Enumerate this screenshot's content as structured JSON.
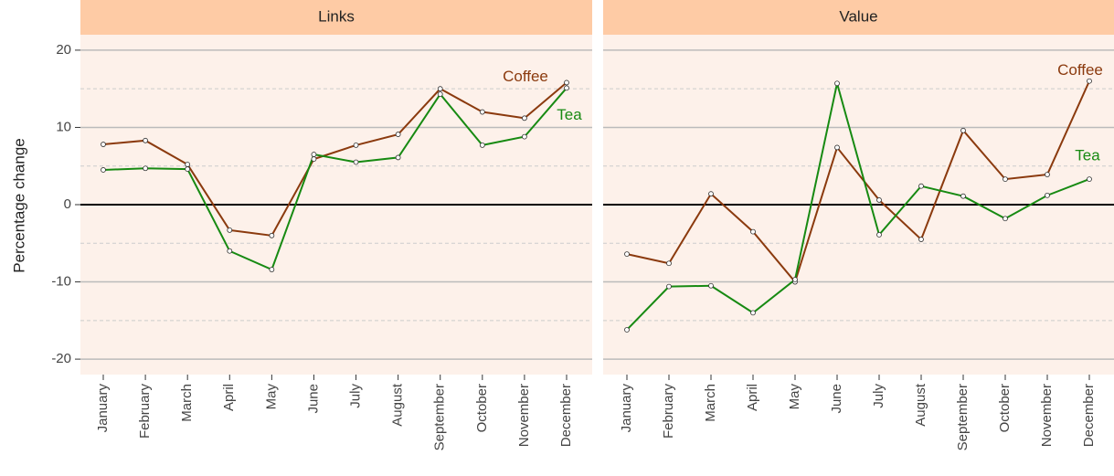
{
  "chart_data": [
    {
      "type": "line",
      "title": "Links",
      "ylabel": "Percentage change",
      "categories": [
        "January",
        "February",
        "March",
        "April",
        "May",
        "June",
        "July",
        "August",
        "September",
        "October",
        "November",
        "December"
      ],
      "series": [
        {
          "name": "Coffee",
          "color": "#8b3a0e",
          "values": [
            7.8,
            8.3,
            5.2,
            -3.3,
            -4.0,
            5.9,
            7.7,
            9.1,
            15.0,
            12.0,
            11.2,
            15.8
          ]
        },
        {
          "name": "Tea",
          "color": "#178a12",
          "values": [
            4.5,
            4.7,
            4.6,
            -6.0,
            -8.4,
            6.5,
            5.5,
            6.1,
            14.3,
            7.7,
            8.8,
            15.1
          ]
        }
      ],
      "ylim": [
        -22,
        22
      ],
      "yticks": [
        -20,
        -10,
        0,
        10,
        20
      ],
      "minor_yticks": [
        -15,
        -5,
        5,
        15
      ],
      "grid": true
    },
    {
      "type": "line",
      "title": "Value",
      "categories": [
        "January",
        "February",
        "March",
        "April",
        "May",
        "June",
        "July",
        "August",
        "September",
        "October",
        "November",
        "December"
      ],
      "series": [
        {
          "name": "Coffee",
          "color": "#8b3a0e",
          "values": [
            -6.4,
            -7.6,
            1.4,
            -3.5,
            -10.0,
            7.4,
            0.6,
            -4.5,
            9.6,
            3.3,
            3.9,
            16.0
          ]
        },
        {
          "name": "Tea",
          "color": "#178a12",
          "values": [
            -16.2,
            -10.6,
            -10.5,
            -14.0,
            -9.7,
            15.7,
            -3.9,
            2.4,
            1.1,
            -1.8,
            1.2,
            3.3
          ]
        }
      ],
      "ylim": [
        -22,
        22
      ],
      "yticks": [
        -20,
        -10,
        0,
        10,
        20
      ],
      "minor_yticks": [
        -15,
        -5,
        5,
        15
      ],
      "grid": true
    }
  ]
}
